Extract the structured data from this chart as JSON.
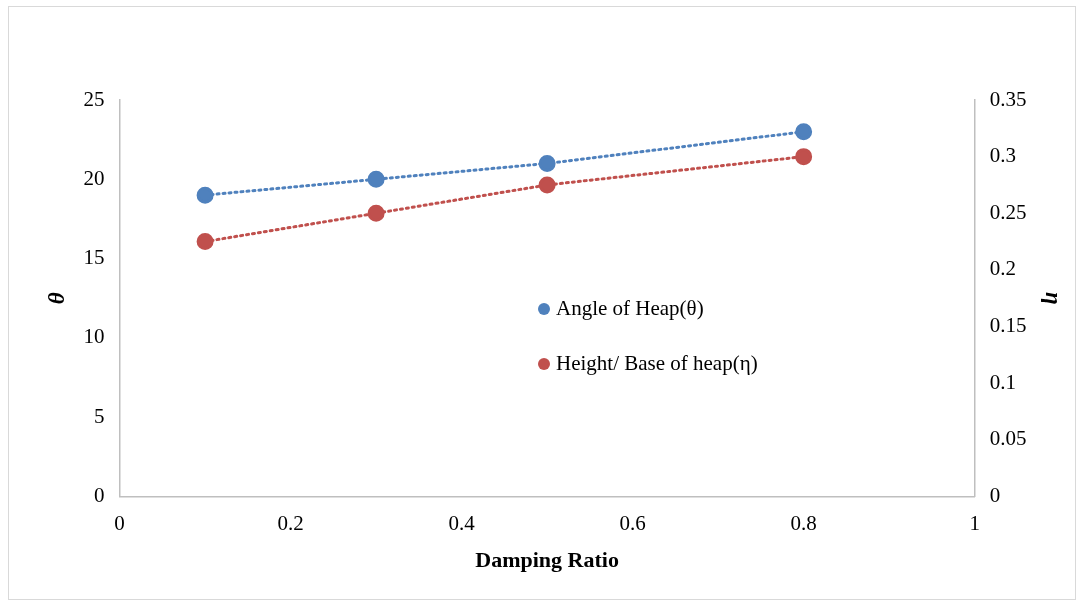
{
  "chart_data": {
    "type": "line",
    "xlabel": "Damping Ratio",
    "ylabel": "θ",
    "y2label": "η",
    "x": [
      0.1,
      0.3,
      0.5,
      0.8
    ],
    "xlim": [
      0,
      1
    ],
    "xticks": [
      0,
      0.2,
      0.4,
      0.6,
      0.8,
      1
    ],
    "ylim": [
      0,
      25
    ],
    "yticks": [
      0,
      5,
      10,
      15,
      20,
      25
    ],
    "y2lim": [
      0,
      0.35
    ],
    "y2ticks": [
      0,
      0.05,
      0.1,
      0.15,
      0.2,
      0.25,
      0.3,
      0.35
    ],
    "series": [
      {
        "name": "Angle of Heap(θ)",
        "color": "#4f81bd",
        "values": [
          19,
          20,
          21,
          23
        ]
      },
      {
        "name": "Height/ Base of heap(η)",
        "color": "#c0504d",
        "values": [
          0.225,
          0.25,
          0.275,
          0.3
        ],
        "axis": "y2"
      }
    ],
    "grid": false,
    "legend": "right",
    "marker": "circle",
    "line_style": "dotted"
  }
}
